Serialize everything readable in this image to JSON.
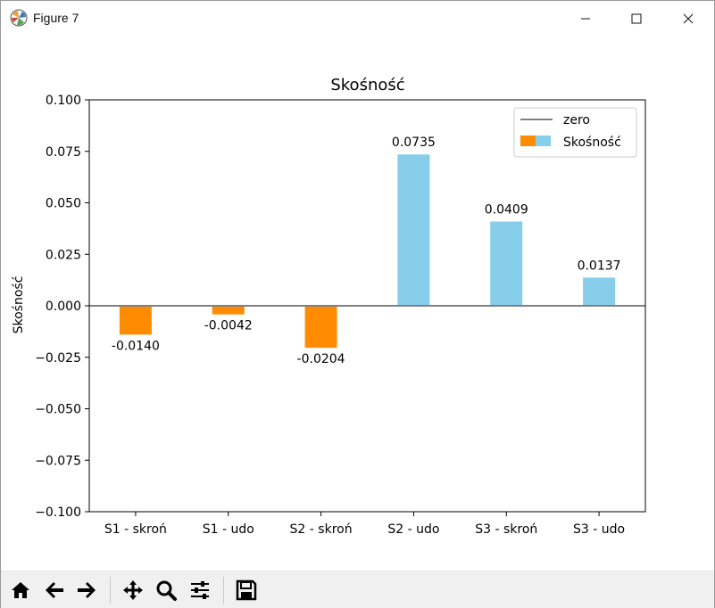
{
  "window": {
    "title": "Figure 7",
    "app_icon": "matplotlib-icon",
    "controls": [
      "minimize-icon",
      "maximize-icon",
      "close-icon"
    ]
  },
  "toolbar": {
    "buttons": [
      "home-icon",
      "back-arrow-icon",
      "forward-arrow-icon",
      "pan-icon",
      "zoom-icon",
      "configure-subplots-icon",
      "save-icon"
    ]
  },
  "chart_data": {
    "type": "bar",
    "title": "Skośność",
    "xlabel": "",
    "ylabel": "Skośność",
    "categories": [
      "S1 - skroń",
      "S1 - udo",
      "S2 - skroń",
      "S2 - udo",
      "S3 - skroń",
      "S3 - udo"
    ],
    "values": [
      -0.014,
      -0.0042,
      -0.0204,
      0.0735,
      0.0409,
      0.0137
    ],
    "value_labels": [
      "-0.0140",
      "-0.0042",
      "-0.0204",
      "0.0735",
      "0.0409",
      "0.0137"
    ],
    "ylim": [
      -0.1,
      0.1
    ],
    "yticks": [
      0.1,
      0.075,
      0.05,
      0.025,
      0.0,
      -0.025,
      -0.05,
      -0.075,
      -0.1
    ],
    "ytick_labels": [
      "0.100",
      "0.075",
      "0.050",
      "0.025",
      "0.000",
      "−0.025",
      "−0.050",
      "−0.075",
      "−0.100"
    ],
    "reference_line": {
      "name": "zero",
      "value": 0,
      "color": "#808080"
    },
    "colors": {
      "negative": "#ff8c00",
      "positive": "#87ceeb"
    },
    "legend": {
      "placement": "top-right",
      "entries": [
        "zero",
        "Skośność"
      ]
    },
    "grid": false
  }
}
